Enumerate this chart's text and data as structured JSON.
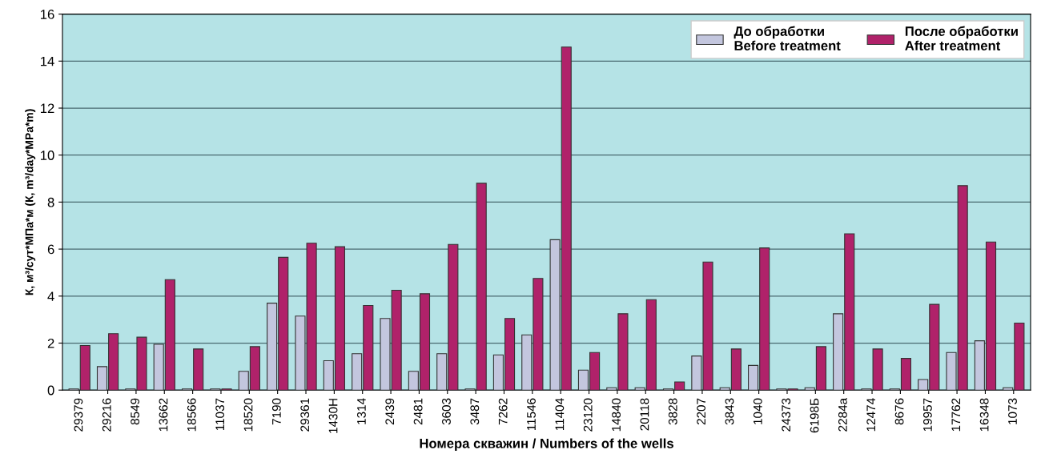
{
  "chart_data": {
    "type": "bar",
    "xlabel": "Номера скважин / Numbers of the wells",
    "ylabel": "К, м³/сут*МПа*м (К, m³/day*MPa*m)",
    "categories": [
      "29379",
      "29216",
      "8549",
      "13662",
      "18566",
      "11037",
      "18520",
      "7190",
      "29361",
      "1430H",
      "1314",
      "2439",
      "2481",
      "3603",
      "3487",
      "7262",
      "11546",
      "11404",
      "23120",
      "14840",
      "20118",
      "3828",
      "2207",
      "3843",
      "1040",
      "24373",
      "6198Б",
      "2284a",
      "12474",
      "8676",
      "19957",
      "17762",
      "16348",
      "1073"
    ],
    "series": [
      {
        "name": "До обработки\nBefore treatment",
        "color": "#c3c6de",
        "values": [
          0.05,
          1.0,
          0.05,
          1.95,
          0.05,
          0.05,
          0.8,
          3.7,
          3.15,
          1.25,
          1.55,
          3.05,
          0.8,
          1.55,
          0.05,
          1.5,
          2.35,
          6.4,
          0.85,
          0.1,
          0.1,
          0.05,
          1.45,
          0.1,
          1.05,
          0.05,
          0.1,
          3.25,
          0.05,
          0.05,
          0.45,
          1.6,
          2.1,
          0.1
        ]
      },
      {
        "name": "После обработки\nAfter treatment",
        "color": "#b0226a",
        "values": [
          1.9,
          2.4,
          2.25,
          4.7,
          1.75,
          0.05,
          1.85,
          5.65,
          6.25,
          6.1,
          3.6,
          4.25,
          4.1,
          6.2,
          8.8,
          3.05,
          4.75,
          14.6,
          1.6,
          3.25,
          3.85,
          0.35,
          5.45,
          1.75,
          6.05,
          0.05,
          1.85,
          6.65,
          1.75,
          1.35,
          3.65,
          8.7,
          6.3,
          2.85
        ]
      }
    ],
    "ylim": [
      0,
      16
    ],
    "yticks": [
      0,
      2,
      4,
      6,
      8,
      10,
      12,
      14,
      16
    ],
    "grid": "y",
    "legend": "top right"
  }
}
